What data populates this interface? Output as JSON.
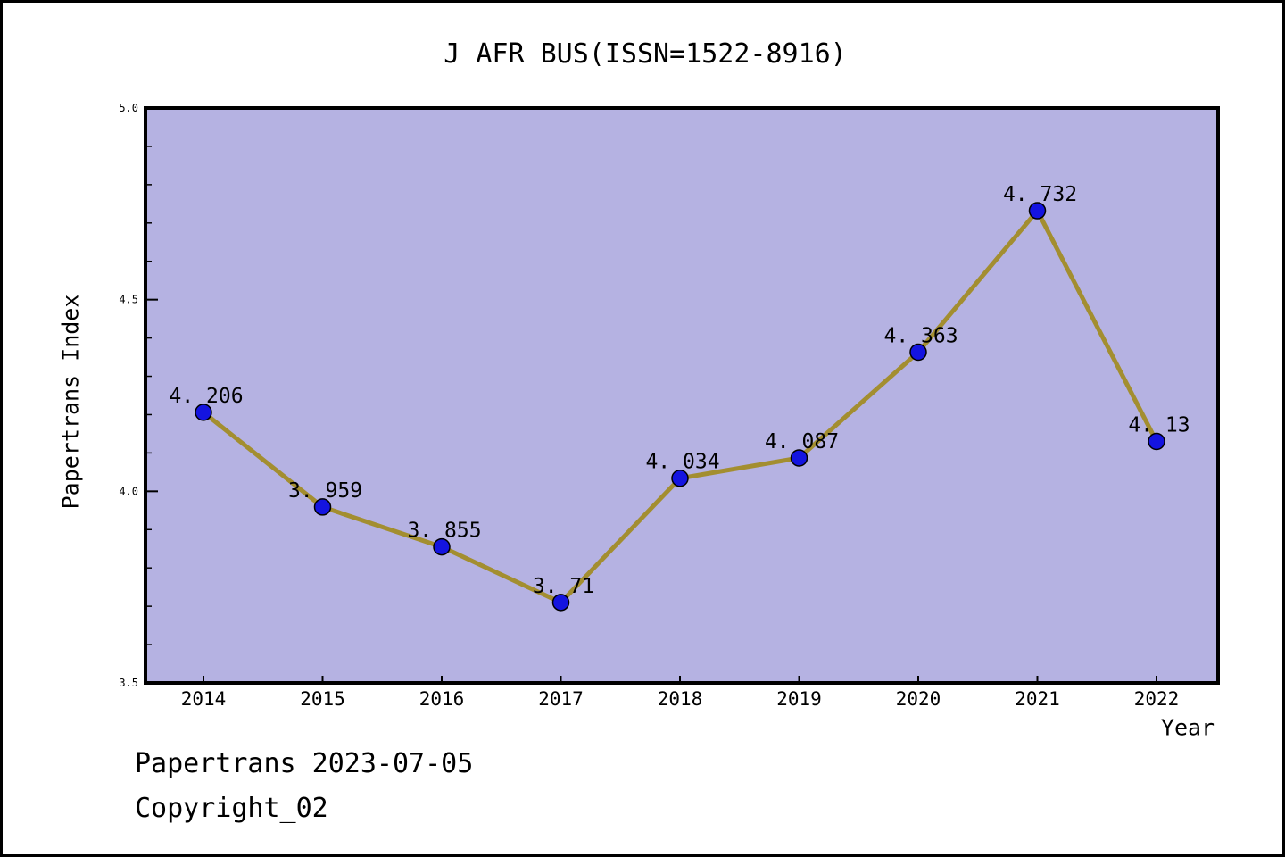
{
  "footer": {
    "line1": "Papertrans 2023-07-05",
    "line2": "Copyright_02"
  },
  "chart_data": {
    "type": "line",
    "title": "J AFR BUS(ISSN=1522-8916)",
    "xlabel": "Year",
    "ylabel": "Papertrans Index",
    "x_tick_labels": [
      "2014",
      "2015",
      "2016",
      "2017",
      "2018",
      "2019",
      "2020",
      "2021",
      "2022"
    ],
    "values": [
      4.206,
      3.959,
      3.855,
      3.71,
      4.034,
      4.087,
      4.363,
      4.732,
      4.13
    ],
    "point_labels": [
      "4. 206",
      "3. 959",
      "3. 855",
      "3. 71",
      "4. 034",
      "4. 087",
      "4. 363",
      "4. 732",
      "4. 13"
    ],
    "ylim": [
      3.5,
      5.0
    ],
    "y_major_ticks": [
      3.5,
      4.0,
      4.5,
      5.0
    ],
    "y_major_tick_labels": [
      "3.5",
      "4.0",
      "4.5",
      "5.0"
    ],
    "y_minor_step": 0.1,
    "grid": false,
    "legend": null,
    "colors": {
      "plot_bg": "#b5b2e2",
      "line": "#a38e30",
      "point_fill": "#1414e0",
      "point_edge": "#000000",
      "axis": "#000000",
      "text": "#000000"
    }
  }
}
